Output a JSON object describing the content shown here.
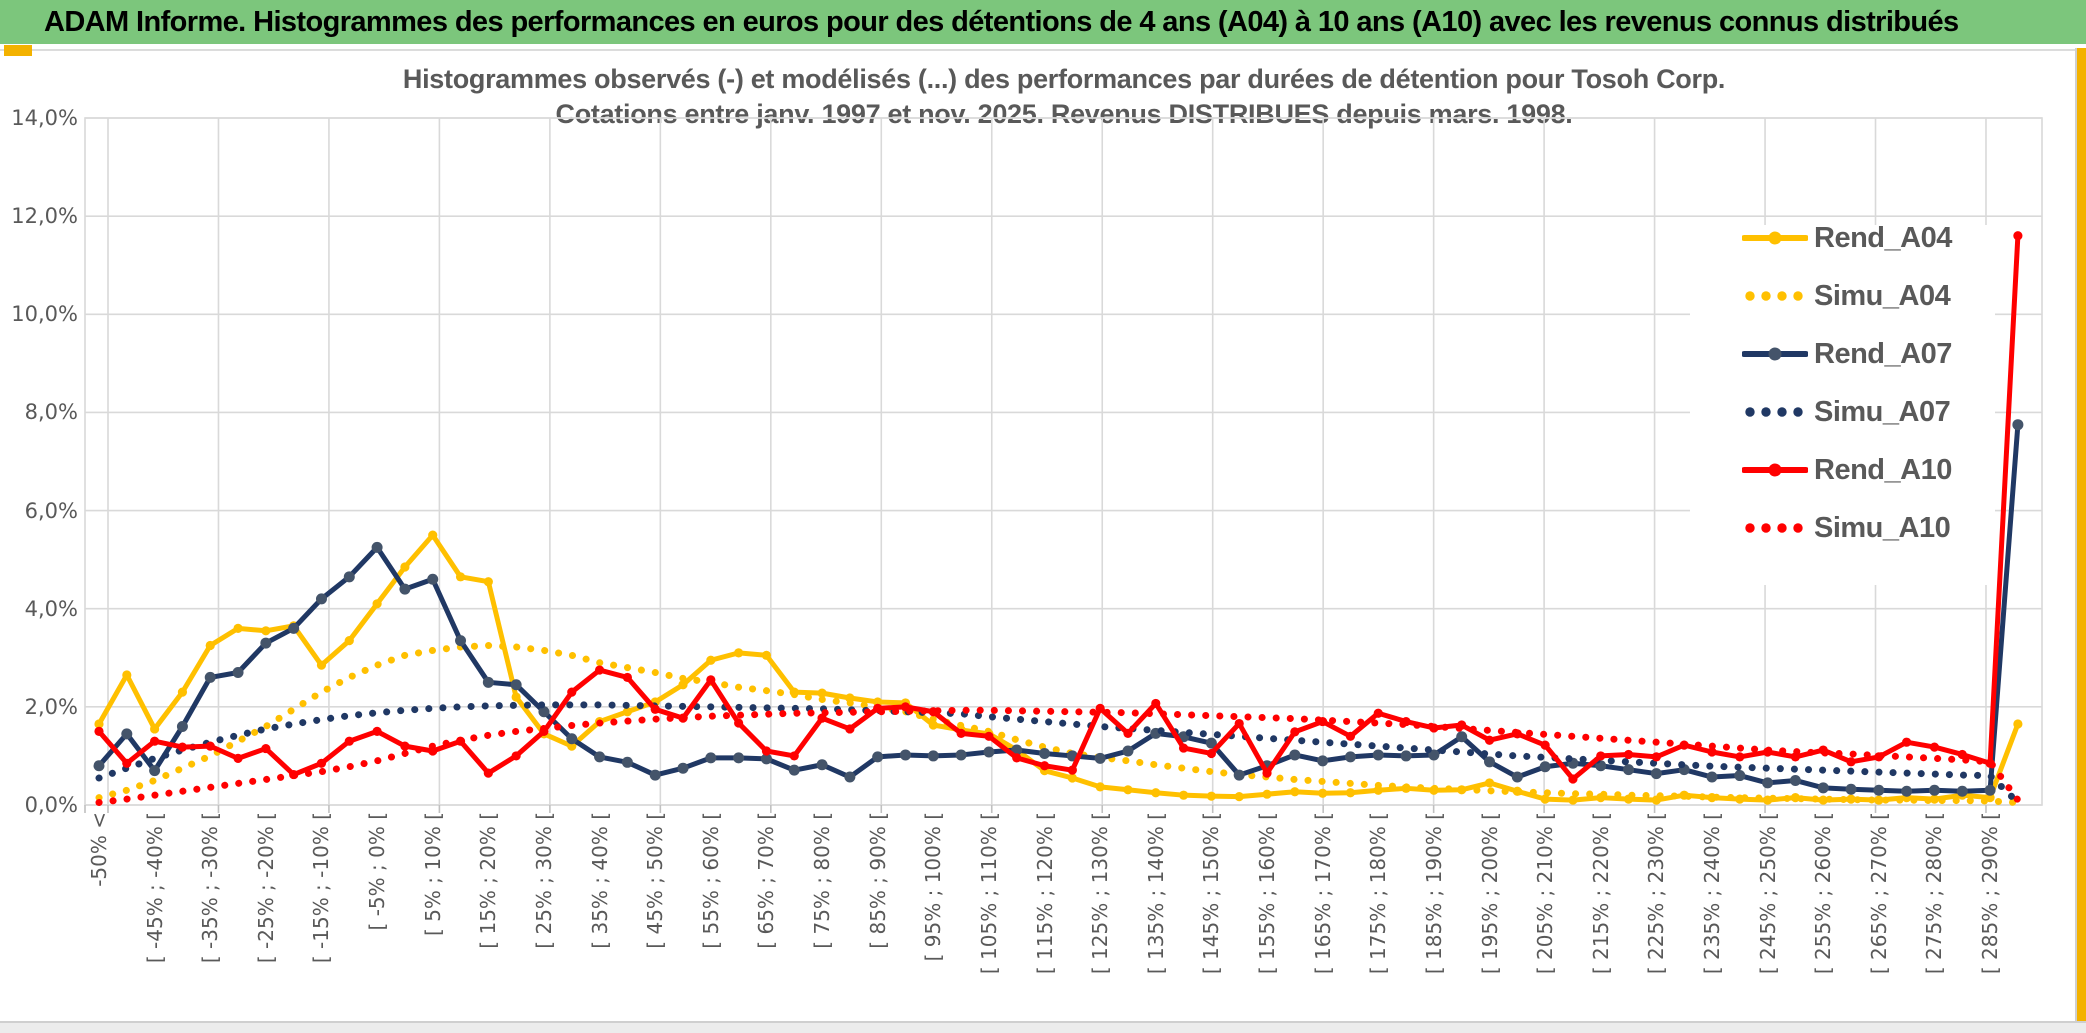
{
  "banner": {
    "title": "ADAM Informe. Histogrammes des performances en euros pour des détentions de 4 ans (A04) à 10 ans (A10) avec les revenus connus distribués",
    "banner_green": "#7CC67C",
    "accent_yellow": "#F3B200"
  },
  "chart_data": {
    "type": "line",
    "title_line1": "Histogrammes observés (-) et modélisés (...) des performances par durées de détention pour Tosoh Corp.",
    "title_line2": "Cotations entre janv. 1997 et nov. 2025. Revenus DISTRIBUES depuis mars. 1998.",
    "grid": true,
    "legend_position": "right",
    "ylim": [
      0,
      14
    ],
    "y_tick_labels": [
      "0,0%",
      "2,0%",
      "4,0%",
      "6,0%",
      "8,0%",
      "10,0%",
      "12,0%",
      "14,0%"
    ],
    "x_tick_labels": [
      "-50% <",
      "[ -45% ; -40% [",
      "[ -35% ; -30% [",
      "[ -25% ; -20% [",
      "[ -15% ; -10% [",
      "[ -5% ; 0% [",
      "[ 5% ; 10% [",
      "[ 15% ; 20% [",
      "[ 25% ; 30% [",
      "[ 35% ; 40% [",
      "[ 45% ; 50% [",
      "[ 55% ; 60% [",
      "[ 65% ; 70% [",
      "[ 75% ; 80% [",
      "[ 85% ; 90% [",
      "[ 95% ; 100% [",
      "[ 105% ; 110% [",
      "[ 115% ; 120% [",
      "[ 125% ; 130% [",
      "[ 135% ; 140% [",
      "[ 145% ; 150% [",
      "[ 155% ; 160% [",
      "[ 165% ; 170% [",
      "[ 175% ; 180% [",
      "[ 185% ; 190% [",
      "[ 195% ; 200% [",
      "[ 205% ; 210% [",
      "[ 215% ; 220% [",
      "[ 225% ; 230% [",
      "[ 235% ; 240% [",
      "[ 245% ; 250% [",
      "[ 255% ; 260% [",
      "[ 265% ; 270% [",
      "[ 275% ; 280% [",
      "[ 285% ; 290% ["
    ],
    "x_labels_every_other_category": true,
    "n_categories": 70,
    "colors": {
      "gold": "#FFC000",
      "navy": "#203864",
      "navy_marker": "#44546A",
      "red": "#FF0000",
      "grid": "#D9D9D9",
      "axis_text": "#595959"
    },
    "series": [
      {
        "name": "Rend_A04",
        "style": "solid",
        "color": "#FFC000",
        "marker_color": "#FFC000",
        "values": [
          1.65,
          2.65,
          1.55,
          2.3,
          3.25,
          3.6,
          3.55,
          3.65,
          2.85,
          3.35,
          4.1,
          4.85,
          5.5,
          4.65,
          4.55,
          2.2,
          1.45,
          1.2,
          1.7,
          1.9,
          2.1,
          2.45,
          2.95,
          3.1,
          3.05,
          2.3,
          2.28,
          2.18,
          2.1,
          2.08,
          1.63,
          1.53,
          1.45,
          1.12,
          0.7,
          0.55,
          0.37,
          0.31,
          0.25,
          0.2,
          0.18,
          0.17,
          0.22,
          0.27,
          0.24,
          0.25,
          0.3,
          0.34,
          0.3,
          0.31,
          0.45,
          0.28,
          0.12,
          0.1,
          0.15,
          0.12,
          0.1,
          0.2,
          0.15,
          0.12,
          0.1,
          0.15,
          0.1,
          0.12,
          0.1,
          0.15,
          0.12,
          0.2,
          0.15,
          1.65
        ]
      },
      {
        "name": "Simu_A04",
        "style": "dotted",
        "color": "#FFC000",
        "values": [
          0.15,
          0.3,
          0.5,
          0.75,
          1.0,
          1.3,
          1.6,
          1.95,
          2.3,
          2.6,
          2.85,
          3.05,
          3.15,
          3.22,
          3.25,
          3.22,
          3.15,
          3.05,
          2.9,
          2.8,
          2.7,
          2.58,
          2.5,
          2.4,
          2.33,
          2.25,
          2.15,
          2.08,
          2.0,
          1.9,
          1.75,
          1.62,
          1.5,
          1.33,
          1.18,
          1.05,
          0.97,
          0.9,
          0.82,
          0.75,
          0.68,
          0.62,
          0.57,
          0.52,
          0.48,
          0.44,
          0.4,
          0.37,
          0.34,
          0.32,
          0.29,
          0.27,
          0.25,
          0.23,
          0.22,
          0.2,
          0.19,
          0.18,
          0.16,
          0.15,
          0.14,
          0.13,
          0.12,
          0.11,
          0.1,
          0.1,
          0.09,
          0.09,
          0.08,
          0.05
        ]
      },
      {
        "name": "Rend_A07",
        "style": "solid",
        "color": "#203864",
        "marker_color": "#44546A",
        "values": [
          0.8,
          1.45,
          0.7,
          1.6,
          2.6,
          2.7,
          3.3,
          3.6,
          4.2,
          4.65,
          5.25,
          4.4,
          4.6,
          3.35,
          2.5,
          2.45,
          1.9,
          1.35,
          0.98,
          0.87,
          0.61,
          0.75,
          0.96,
          0.96,
          0.94,
          0.71,
          0.82,
          0.57,
          0.98,
          1.02,
          1.0,
          1.02,
          1.08,
          1.12,
          1.05,
          1.0,
          0.95,
          1.1,
          1.46,
          1.39,
          1.26,
          0.61,
          0.8,
          1.02,
          0.9,
          0.98,
          1.02,
          1.0,
          1.02,
          1.39,
          0.88,
          0.57,
          0.78,
          0.85,
          0.8,
          0.72,
          0.64,
          0.72,
          0.57,
          0.6,
          0.45,
          0.5,
          0.35,
          0.32,
          0.3,
          0.28,
          0.3,
          0.28,
          0.3,
          7.75
        ]
      },
      {
        "name": "Simu_A07",
        "style": "dotted",
        "color": "#203864",
        "values": [
          0.55,
          0.75,
          0.95,
          1.12,
          1.28,
          1.42,
          1.55,
          1.65,
          1.74,
          1.82,
          1.88,
          1.93,
          1.97,
          2.0,
          2.02,
          2.03,
          2.04,
          2.04,
          2.04,
          2.03,
          2.02,
          2.01,
          2.0,
          1.99,
          1.98,
          1.97,
          1.96,
          1.94,
          1.92,
          1.9,
          1.88,
          1.86,
          1.8,
          1.75,
          1.7,
          1.65,
          1.6,
          1.56,
          1.52,
          1.48,
          1.44,
          1.4,
          1.36,
          1.32,
          1.28,
          1.24,
          1.2,
          1.16,
          1.12,
          1.08,
          1.04,
          1.0,
          0.97,
          0.94,
          0.91,
          0.88,
          0.85,
          0.82,
          0.79,
          0.77,
          0.75,
          0.73,
          0.71,
          0.69,
          0.67,
          0.65,
          0.63,
          0.61,
          0.6,
          0.05
        ]
      },
      {
        "name": "Rend_A10",
        "style": "solid",
        "color": "#FF0000",
        "marker_color": "#FF0000",
        "values": [
          1.5,
          0.85,
          1.3,
          1.18,
          1.2,
          0.95,
          1.15,
          0.62,
          0.85,
          1.3,
          1.5,
          1.2,
          1.1,
          1.3,
          0.65,
          1.0,
          1.5,
          2.3,
          2.75,
          2.6,
          1.95,
          1.77,
          2.55,
          1.67,
          1.1,
          1.0,
          1.77,
          1.55,
          1.97,
          2.0,
          1.9,
          1.46,
          1.4,
          0.96,
          0.8,
          0.71,
          1.97,
          1.46,
          2.07,
          1.16,
          1.05,
          1.66,
          0.65,
          1.49,
          1.7,
          1.4,
          1.87,
          1.7,
          1.57,
          1.63,
          1.32,
          1.45,
          1.22,
          0.53,
          1.0,
          1.03,
          0.98,
          1.22,
          1.08,
          0.98,
          1.08,
          0.98,
          1.12,
          0.88,
          0.98,
          1.28,
          1.18,
          1.03,
          0.85,
          11.6
        ]
      },
      {
        "name": "Simu_A10",
        "style": "dotted",
        "color": "#FF0000",
        "values": [
          0.05,
          0.12,
          0.2,
          0.28,
          0.36,
          0.44,
          0.52,
          0.6,
          0.68,
          0.78,
          0.9,
          1.05,
          1.2,
          1.32,
          1.42,
          1.5,
          1.56,
          1.62,
          1.67,
          1.71,
          1.75,
          1.78,
          1.81,
          1.83,
          1.85,
          1.87,
          1.88,
          1.89,
          1.9,
          1.91,
          1.92,
          1.93,
          1.93,
          1.92,
          1.91,
          1.9,
          1.89,
          1.88,
          1.86,
          1.84,
          1.82,
          1.8,
          1.78,
          1.76,
          1.73,
          1.7,
          1.67,
          1.64,
          1.6,
          1.56,
          1.52,
          1.48,
          1.44,
          1.4,
          1.36,
          1.32,
          1.28,
          1.24,
          1.2,
          1.16,
          1.12,
          1.09,
          1.06,
          1.04,
          1.01,
          0.98,
          0.95,
          0.92,
          0.88,
          0.1
        ]
      }
    ]
  }
}
